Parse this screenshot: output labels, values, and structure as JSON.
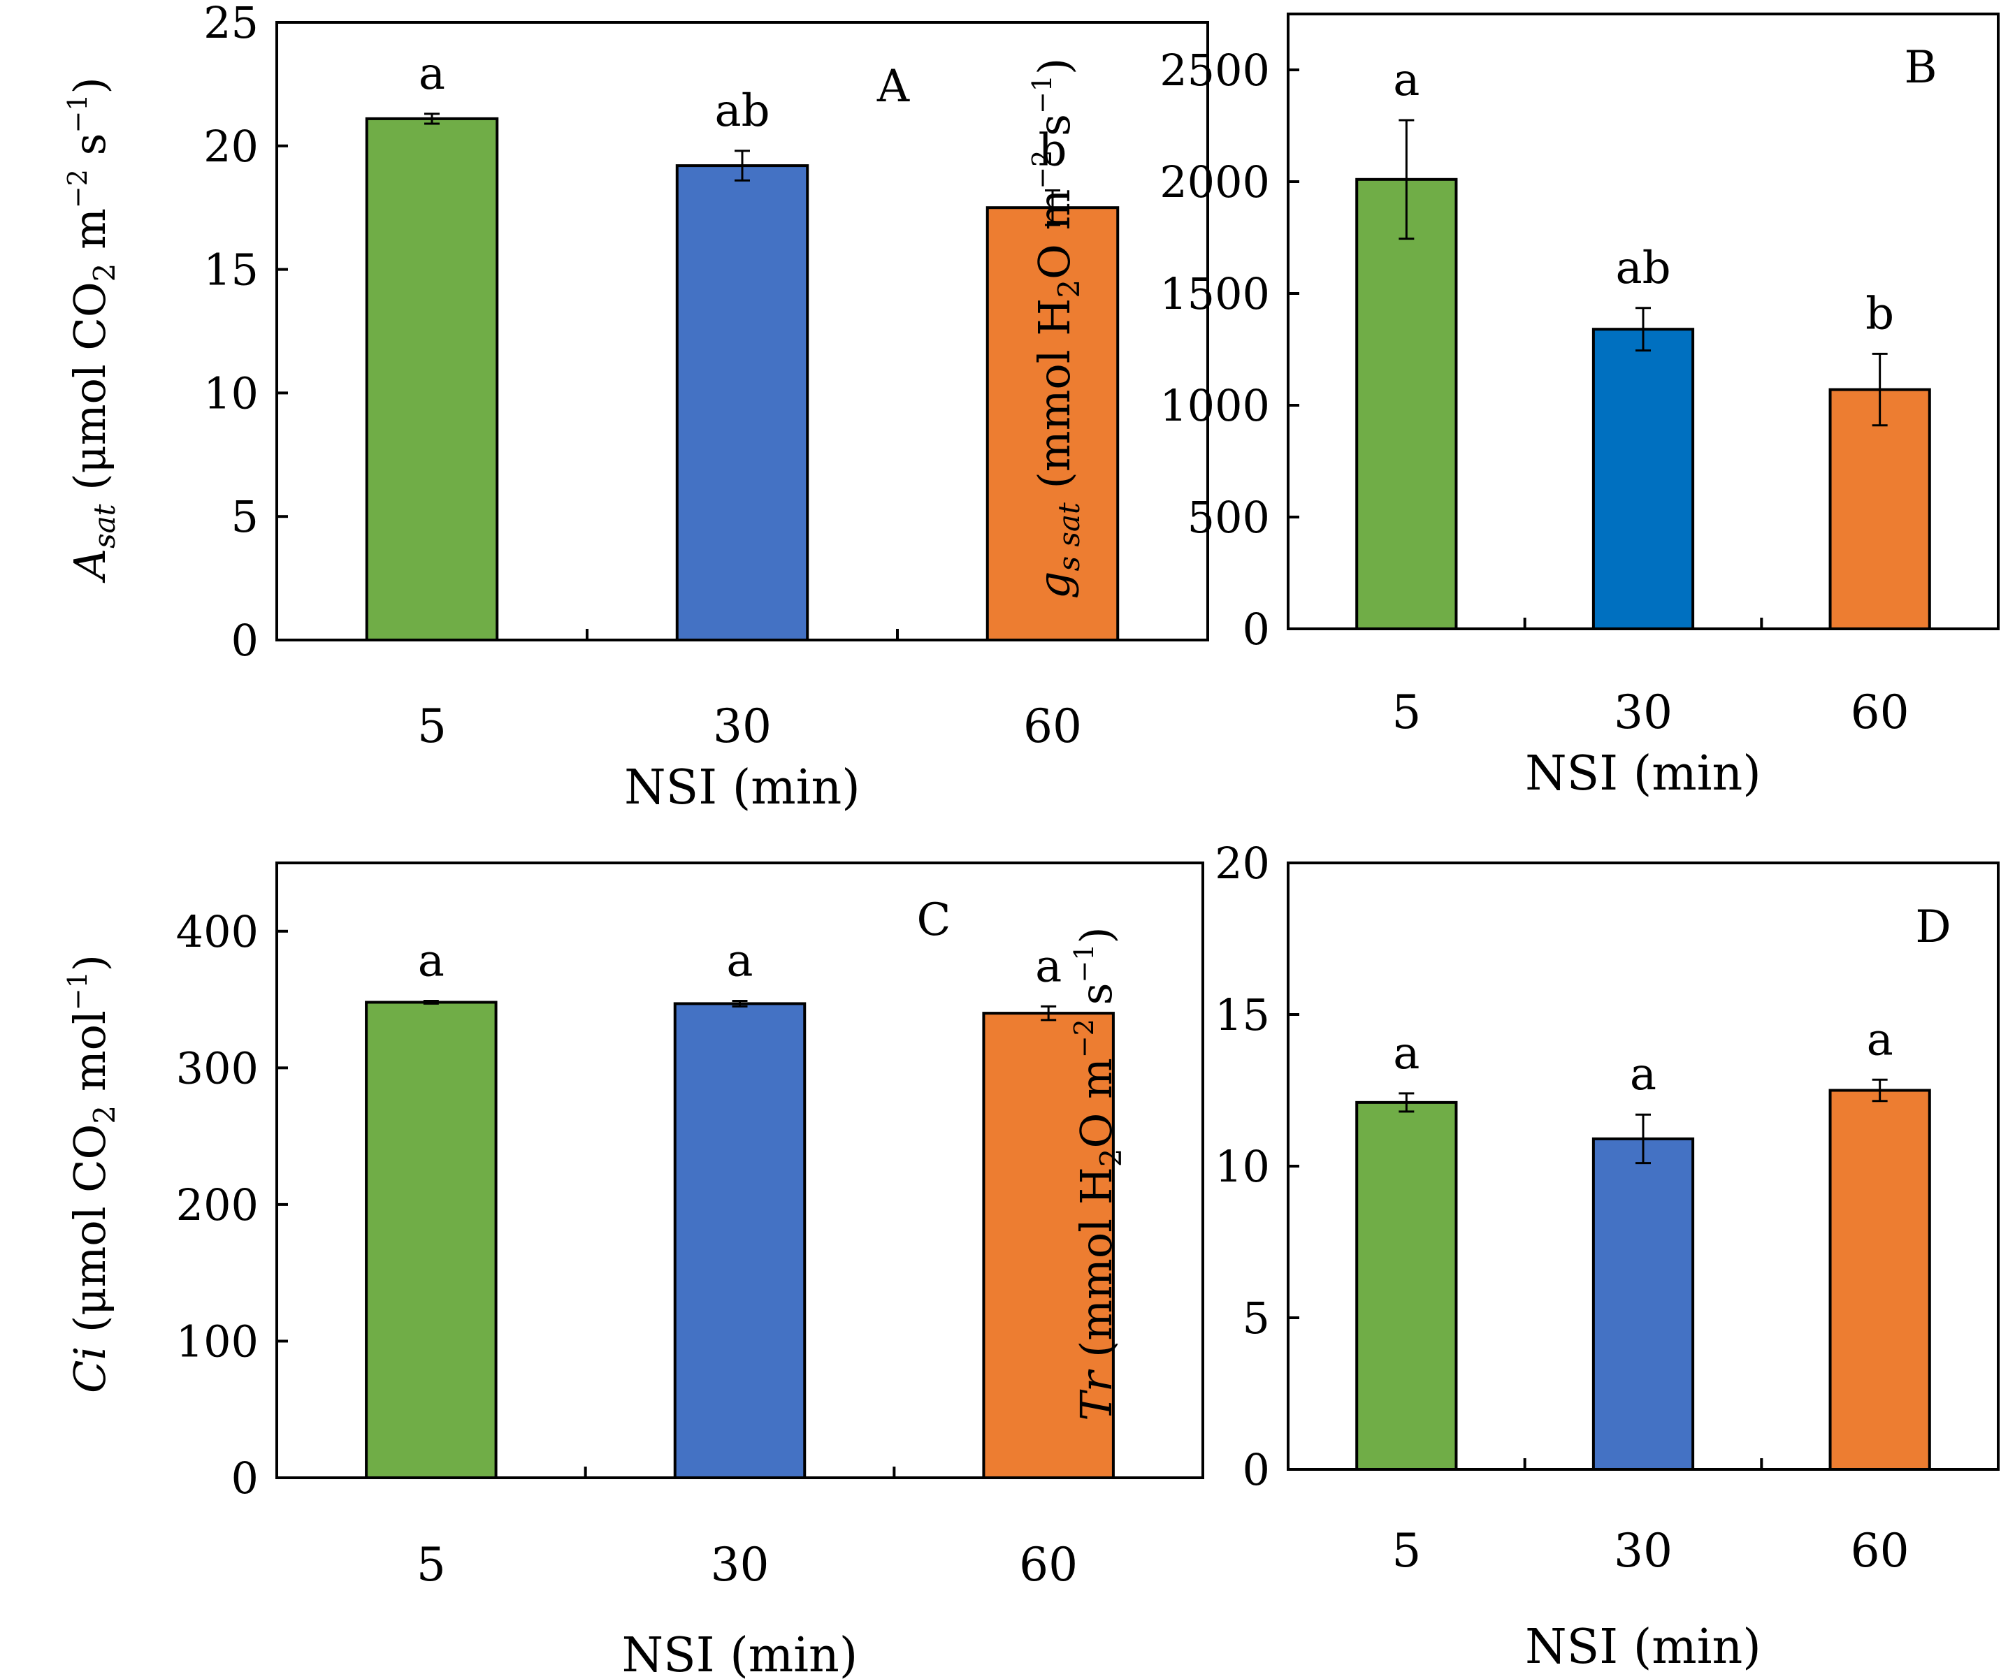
{
  "colors": {
    "green": "#70AD47",
    "blue": "#4472C4",
    "blue_dark": "#0070C0",
    "orange": "#ED7D31",
    "outline": "#000000"
  },
  "chart_data": [
    {
      "type": "bar",
      "panel": "A",
      "categories": [
        "5",
        "30",
        "60"
      ],
      "values": [
        21.1,
        19.2,
        17.5
      ],
      "errors": [
        0.2,
        0.6,
        0.7
      ],
      "significance": [
        "a",
        "ab",
        "b"
      ],
      "bar_colors": [
        "#70AD47",
        "#4472C4",
        "#ED7D31"
      ],
      "ylim": [
        0,
        25
      ],
      "yticks": [
        0,
        5,
        10,
        15,
        20,
        25
      ],
      "xlabel": "NSI (min)",
      "ylabel_parts": [
        {
          "t": "A",
          "style": "italic"
        },
        {
          "t": "sat",
          "style": "italic-sub"
        },
        {
          "t": "  (μmol CO",
          "style": "normal"
        },
        {
          "t": "2",
          "style": "sub"
        },
        {
          "t": " m",
          "style": "normal"
        },
        {
          "t": "−2",
          "style": "sup"
        },
        {
          "t": " s",
          "style": "normal"
        },
        {
          "t": "−1",
          "style": "sup"
        },
        {
          "t": ")",
          "style": "normal"
        }
      ],
      "top_tick": true
    },
    {
      "type": "bar",
      "panel": "B",
      "categories": [
        "5",
        "30",
        "60"
      ],
      "values": [
        2010,
        1340,
        1070
      ],
      "errors": [
        265,
        95,
        160
      ],
      "significance": [
        "a",
        "ab",
        "b"
      ],
      "bar_colors": [
        "#70AD47",
        "#0070C0",
        "#ED7D31"
      ],
      "ylim": [
        0,
        2750
      ],
      "yticks": [
        0,
        500,
        1000,
        1500,
        2000,
        2500
      ],
      "xlabel": "NSI (min)",
      "ylabel_parts": [
        {
          "t": "g",
          "style": "italic"
        },
        {
          "t": "s sat",
          "style": "italic-sub"
        },
        {
          "t": " (mmol H",
          "style": "normal"
        },
        {
          "t": "2",
          "style": "sub"
        },
        {
          "t": "O m",
          "style": "normal"
        },
        {
          "t": "−2",
          "style": "sup"
        },
        {
          "t": " s",
          "style": "normal"
        },
        {
          "t": "−1",
          "style": "sup"
        },
        {
          "t": ")",
          "style": "normal"
        }
      ],
      "top_tick": false
    },
    {
      "type": "bar",
      "panel": "C",
      "categories": [
        "5",
        "30",
        "60"
      ],
      "values": [
        348,
        347,
        340
      ],
      "errors": [
        1,
        2,
        5
      ],
      "significance": [
        "a",
        "a",
        "a"
      ],
      "bar_colors": [
        "#70AD47",
        "#4472C4",
        "#ED7D31"
      ],
      "ylim": [
        0,
        450
      ],
      "yticks": [
        0,
        100,
        200,
        300,
        400
      ],
      "xlabel": "NSI (min)",
      "ylabel_parts": [
        {
          "t": "Ci",
          "style": "italic"
        },
        {
          "t": " (μmol CO",
          "style": "normal"
        },
        {
          "t": "2",
          "style": "sub"
        },
        {
          "t": " mol",
          "style": "normal"
        },
        {
          "t": "−1",
          "style": "sup"
        },
        {
          "t": ")",
          "style": "normal"
        }
      ],
      "top_tick": false
    },
    {
      "type": "bar",
      "panel": "D",
      "categories": [
        "5",
        "30",
        "60"
      ],
      "values": [
        12.1,
        10.9,
        12.5
      ],
      "errors": [
        0.3,
        0.8,
        0.35
      ],
      "significance": [
        "a",
        "a",
        "a"
      ],
      "bar_colors": [
        "#70AD47",
        "#4472C4",
        "#ED7D31"
      ],
      "ylim": [
        0,
        20
      ],
      "yticks": [
        0,
        5,
        10,
        15,
        20
      ],
      "xlabel": "NSI (min)",
      "ylabel_parts": [
        {
          "t": "Tr",
          "style": "italic"
        },
        {
          "t": " (mmol H",
          "style": "normal"
        },
        {
          "t": "2",
          "style": "sub"
        },
        {
          "t": "O m",
          "style": "normal"
        },
        {
          "t": "−2",
          "style": "sup"
        },
        {
          "t": " s",
          "style": "normal"
        },
        {
          "t": "−1",
          "style": "sup"
        },
        {
          "t": ")",
          "style": "normal"
        }
      ],
      "top_tick": true
    }
  ]
}
